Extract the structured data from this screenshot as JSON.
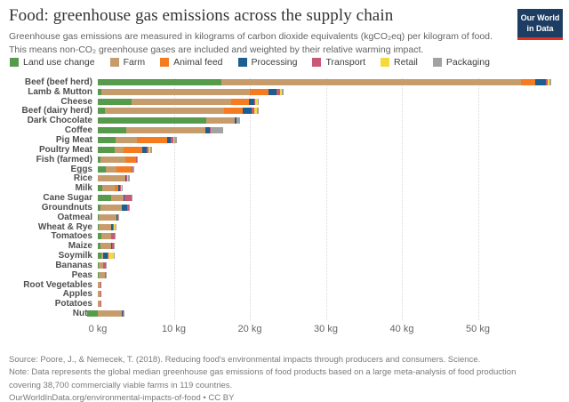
{
  "header": {
    "title": "Food: greenhouse gas emissions across the supply chain",
    "subtitle": "Greenhouse gas emissions are measured in kilograms of carbon dioxide equivalents (kgCO₂eq) per kilogram of food. This means non-CO₂ greenhouse gases are included and weighted by their relative warming impact.",
    "logo": {
      "line1": "Our World",
      "line2": "in Data",
      "bg_color": "#1d3d63",
      "accent_color": "#e0301e"
    }
  },
  "legend": [
    {
      "label": "Land use change",
      "color": "#569a4c"
    },
    {
      "label": "Farm",
      "color": "#c69c6d"
    },
    {
      "label": "Animal feed",
      "color": "#f57b20"
    },
    {
      "label": "Processing",
      "color": "#1b5e8f"
    },
    {
      "label": "Transport",
      "color": "#c85a76"
    },
    {
      "label": "Retail",
      "color": "#f3d93c"
    },
    {
      "label": "Packaging",
      "color": "#a2a2a2"
    }
  ],
  "chart_data": {
    "type": "bar",
    "orientation": "horizontal",
    "stacked": true,
    "unit": "kgCO₂eq per kilogram of food",
    "grid": "dotted-vertical",
    "xlim": [
      -2,
      62
    ],
    "x_ticks": [
      0,
      10,
      20,
      30,
      40,
      50
    ],
    "x_tick_labels": [
      "0 kg",
      "10 kg",
      "20 kg",
      "30 kg",
      "40 kg",
      "50 kg"
    ],
    "categories": [
      "Beef (beef herd)",
      "Lamb & Mutton",
      "Cheese",
      "Beef (dairy herd)",
      "Dark Chocolate",
      "Coffee",
      "Pig Meat",
      "Poultry Meat",
      "Fish (farmed)",
      "Eggs",
      "Rice",
      "Milk",
      "Cane Sugar",
      "Groundnuts",
      "Oatmeal",
      "Wheat & Rye",
      "Tomatoes",
      "Maize",
      "Soymilk",
      "Bananas",
      "Peas",
      "Root Vegetables",
      "Apples",
      "Potatoes",
      "Nuts"
    ],
    "series": [
      {
        "name": "Land use change",
        "color": "#569a4c",
        "values": [
          16.3,
          0.5,
          4.5,
          0.9,
          14.3,
          3.7,
          2.3,
          2.2,
          0.4,
          1.0,
          0,
          0.6,
          1.8,
          0.4,
          0.1,
          0.1,
          0.5,
          0.3,
          0.5,
          0.1,
          0.1,
          0,
          0,
          0,
          -1.4
        ]
      },
      {
        "name": "Farm",
        "color": "#c69c6d",
        "values": [
          39.4,
          19.5,
          13.1,
          15.7,
          3.7,
          10.4,
          2.8,
          1.2,
          3.2,
          1.4,
          3.6,
          1.6,
          1.6,
          2.8,
          2.4,
          1.6,
          1.2,
          1.5,
          0.2,
          0.6,
          0.8,
          0.3,
          0.3,
          0.3,
          3.2
        ]
      },
      {
        "name": "Animal feed",
        "color": "#f57b20",
        "values": [
          1.9,
          2.4,
          2.3,
          2.5,
          0,
          0,
          4.0,
          2.5,
          1.4,
          2.1,
          0,
          0.5,
          0,
          0,
          0,
          0,
          0,
          0,
          0,
          0,
          0,
          0,
          0,
          0,
          0
        ]
      },
      {
        "name": "Processing",
        "color": "#1b5e8f",
        "values": [
          1.3,
          1.1,
          0.7,
          1.1,
          0.2,
          0.6,
          0.5,
          0.5,
          0,
          0,
          0.2,
          0.2,
          0.1,
          0.7,
          0.1,
          0.3,
          0.1,
          0.1,
          0.6,
          0,
          0,
          0,
          0,
          0.1,
          0.1
        ]
      },
      {
        "name": "Transport",
        "color": "#c85a76",
        "values": [
          0.3,
          0.5,
          0.1,
          0.4,
          0.1,
          0.1,
          0.3,
          0.3,
          0.1,
          0.1,
          0.1,
          0.1,
          1.0,
          0.2,
          0.1,
          0.1,
          0.4,
          0.2,
          0.1,
          0.4,
          0.2,
          0.1,
          0.1,
          0.1,
          0.1
        ]
      },
      {
        "name": "Retail",
        "color": "#f3d93c",
        "values": [
          0.2,
          0.2,
          0.3,
          0.3,
          0,
          0.1,
          0.2,
          0.2,
          0.1,
          0,
          0.1,
          0.2,
          0,
          0,
          0,
          0.2,
          0,
          0,
          0.7,
          0,
          0,
          0,
          0,
          0,
          0
        ]
      },
      {
        "name": "Packaging",
        "color": "#a2a2a2",
        "values": [
          0.2,
          0.3,
          0.2,
          0.3,
          0.4,
          1.6,
          0.3,
          0.2,
          0.1,
          0.2,
          0.2,
          0.1,
          0.1,
          0.1,
          0.1,
          0.1,
          0.2,
          0.1,
          0.1,
          0.1,
          0.1,
          0,
          0,
          0,
          0.1
        ]
      }
    ]
  },
  "footer": {
    "lines": [
      "Source: Poore, J., & Nemecek, T. (2018). Reducing food's environmental impacts through producers and consumers. Science.",
      "Note: Data represents the global median greenhouse gas emissions of food products based on a large meta-analysis of food production",
      "covering 38,700 commercially viable farms in 119 countries.",
      "OurWorldInData.org/environmental-impacts-of-food • CC BY"
    ]
  }
}
